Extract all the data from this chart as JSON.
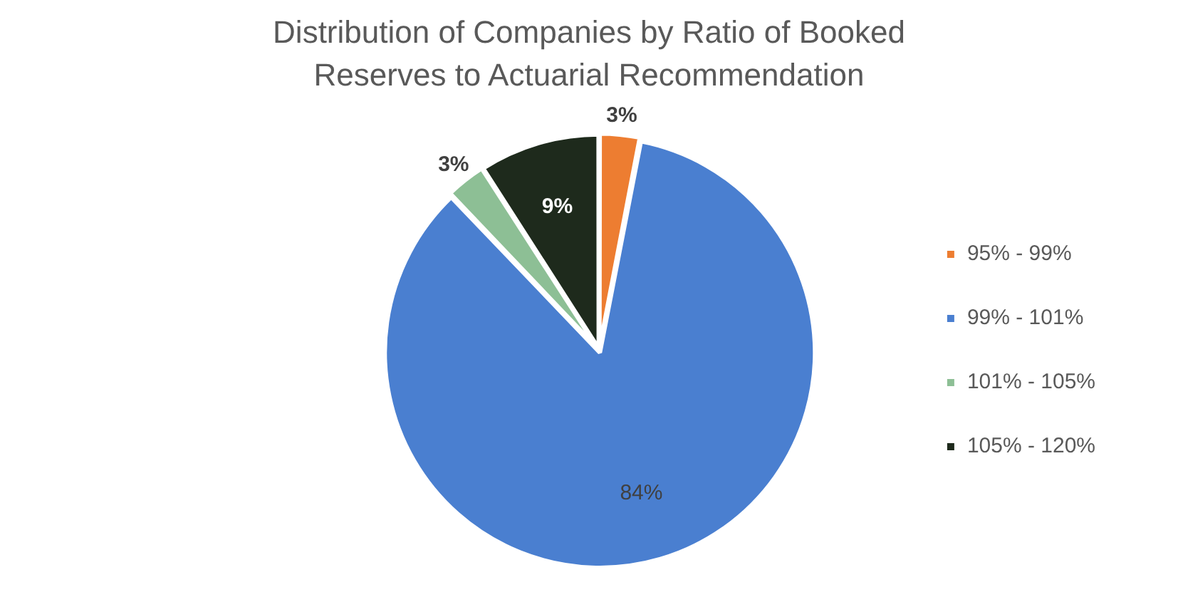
{
  "chart_data": {
    "type": "pie",
    "title": "Distribution of Companies by Ratio of Booked Reserves to Actuarial Recommendation",
    "categories": [
      "95% - 99%",
      "99% - 101%",
      "101% - 105%",
      "105% - 120%"
    ],
    "values": [
      3,
      84,
      3,
      9
    ],
    "colors": [
      "#ed7d31",
      "#4a7fd0",
      "#8dbf95",
      "#1e2a1c"
    ],
    "value_labels": [
      "3%",
      "84%",
      "3%",
      "9%"
    ],
    "legend": "right"
  }
}
